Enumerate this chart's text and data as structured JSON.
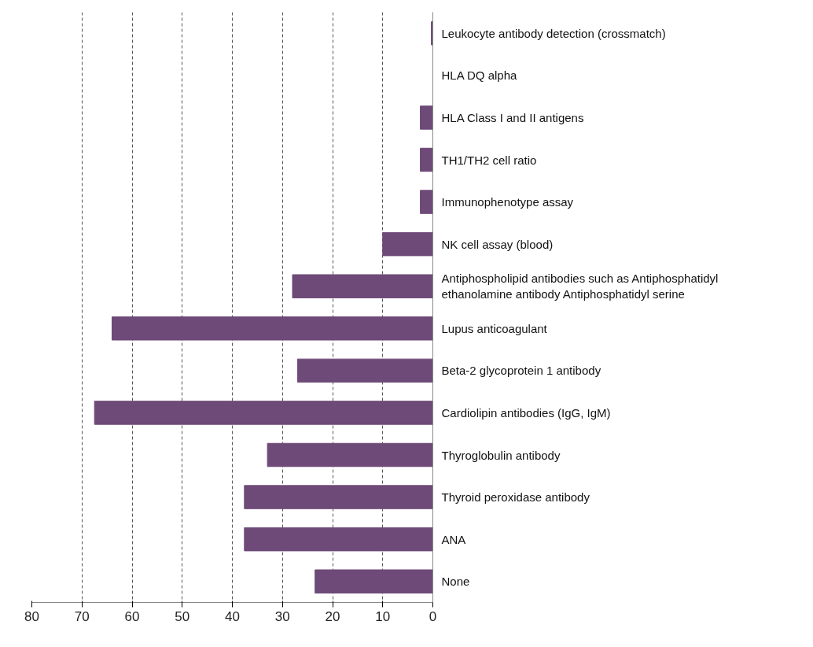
{
  "chart_data": {
    "type": "bar",
    "orientation": "horizontal",
    "categories": [
      "Leukocyte antibody detection (crossmatch)",
      "HLA DQ alpha",
      "HLA Class I and II antigens",
      "TH1/TH2 cell ratio",
      "Immunophenotype assay",
      "NK cell assay (blood)",
      "Antiphospholipid antibodies such as Antiphosphatidyl\nethanolamine antibody Antiphosphatidyl serine",
      "Lupus anticoagulant",
      "Beta-2 glycoprotein 1 antibody",
      "Cardiolipin antibodies (IgG, IgM)",
      "Thyroglobulin antibody",
      "Thyroid peroxidase antibody",
      "ANA",
      "None"
    ],
    "values": [
      0.3,
      0,
      2.5,
      2.5,
      2.5,
      10,
      28,
      64,
      27,
      67.5,
      33,
      37.6,
      37.6,
      23.5
    ],
    "color": "#6e4a78",
    "xlim": [
      80,
      0
    ],
    "xticks": [
      80,
      70,
      60,
      50,
      40,
      30,
      20,
      10,
      0
    ],
    "grid": "x"
  }
}
